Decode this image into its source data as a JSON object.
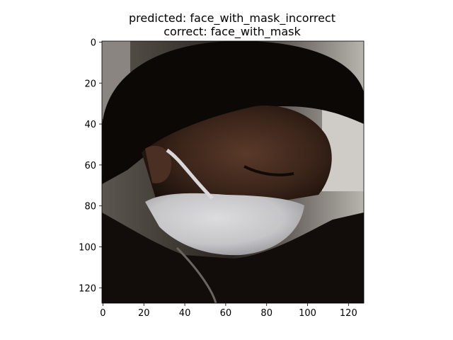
{
  "figure": {
    "title_line1": "predicted: face_with_mask_incorrect",
    "title_line2": "correct: face_with_mask"
  },
  "axes": {
    "x_ticks": [
      "0",
      "20",
      "40",
      "60",
      "80",
      "100",
      "120"
    ],
    "y_ticks": [
      "0",
      "20",
      "40",
      "60",
      "80",
      "100",
      "120"
    ],
    "x_tick_values": [
      0,
      20,
      40,
      60,
      80,
      100,
      120
    ],
    "y_tick_values": [
      0,
      20,
      40,
      60,
      80,
      100,
      120
    ],
    "xlim": [
      -0.5,
      127.5
    ],
    "ylim": [
      127.5,
      -0.5
    ]
  },
  "image": {
    "content": "photo-face-with-mask",
    "colors": {
      "hair": "#0c0806",
      "skin": "#3a2419",
      "mask": "#c9c9cb",
      "background_light": "#a8a5a0",
      "clothing": "#120d0b"
    }
  }
}
